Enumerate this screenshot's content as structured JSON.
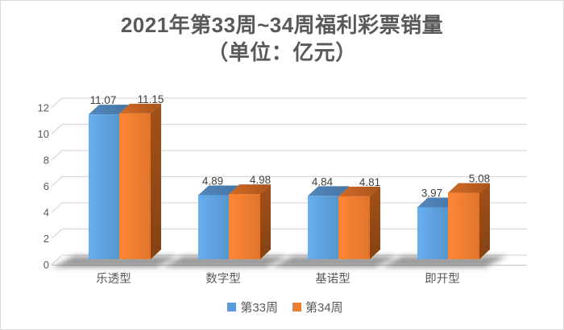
{
  "title": {
    "line1": "2021年第33周~34周福利彩票销量",
    "line2": "（单位：亿元）"
  },
  "chart_data": {
    "type": "bar",
    "style": "3d-clustered-column",
    "title": "2021年第33周~34周福利彩票销量（单位：亿元）",
    "categories": [
      "乐透型",
      "数字型",
      "基诺型",
      "即开型"
    ],
    "series": [
      {
        "name": "第33周",
        "color": "#5B9BD5",
        "values": [
          11.07,
          4.89,
          4.84,
          3.97
        ]
      },
      {
        "name": "第34周",
        "color": "#ED7D31",
        "values": [
          11.15,
          4.98,
          4.81,
          5.08
        ]
      }
    ],
    "ylim": [
      0,
      12
    ],
    "ytick_step": 2,
    "ytick_labels": [
      "0",
      "2",
      "4",
      "6",
      "8",
      "10",
      "12"
    ],
    "grid": true,
    "legend_position": "bottom",
    "value_labels": true,
    "xlabel": "",
    "ylabel": ""
  },
  "colors": {
    "blue_front": "#5B9BD5",
    "blue_top": "#4B7DAE",
    "blue_side": "#3E6C9A",
    "orange_front": "#ED7D31",
    "orange_top": "#BC5E21",
    "orange_side": "#9A4D18",
    "grid": "#D9D9D9",
    "floor": "#CCCCCC",
    "axis_text": "#595959",
    "value_text": "#404040",
    "shadow": "#3A3A3A",
    "border": "#D9D9D9",
    "title_text": "#595959"
  }
}
